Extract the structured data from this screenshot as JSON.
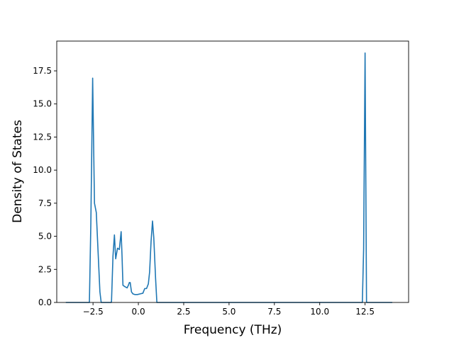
{
  "chart_data": {
    "type": "line",
    "title": "",
    "xlabel": "Frequency (THz)",
    "ylabel": "Density of States",
    "xlim": [
      -4.5,
      14.9
    ],
    "ylim": [
      0,
      19.75
    ],
    "grid": false,
    "legend": "none",
    "line_color": "#1f77b4",
    "x_ticks": [
      {
        "value": -2.5,
        "label": "−2.5"
      },
      {
        "value": 0.0,
        "label": "0.0"
      },
      {
        "value": 2.5,
        "label": "2.5"
      },
      {
        "value": 5.0,
        "label": "5.0"
      },
      {
        "value": 7.5,
        "label": "7.5"
      },
      {
        "value": 10.0,
        "label": "10.0"
      },
      {
        "value": 12.5,
        "label": "12.5"
      }
    ],
    "y_ticks": [
      {
        "value": 0.0,
        "label": "0.0"
      },
      {
        "value": 2.5,
        "label": "2.5"
      },
      {
        "value": 5.0,
        "label": "5.0"
      },
      {
        "value": 7.5,
        "label": "7.5"
      },
      {
        "value": 10.0,
        "label": "10.0"
      },
      {
        "value": 12.5,
        "label": "12.5"
      },
      {
        "value": 15.0,
        "label": "15.0"
      },
      {
        "value": 17.5,
        "label": "17.5"
      }
    ],
    "series": [
      {
        "x": [
          -4.0,
          -2.7,
          -2.62,
          -2.52,
          -2.42,
          -2.32,
          -2.22,
          -2.12,
          -2.05,
          -1.5,
          -1.48,
          -1.4,
          -1.32,
          -1.25,
          -1.15,
          -1.05,
          -0.95,
          -0.9,
          -0.85,
          -0.75,
          -0.62,
          -0.55,
          -0.5,
          -0.45,
          -0.38,
          -0.3,
          -0.2,
          -0.05,
          0.1,
          0.25,
          0.35,
          0.45,
          0.55,
          0.62,
          0.7,
          0.78,
          0.85,
          0.95,
          1.02,
          1.1,
          12.35,
          12.42,
          12.5,
          12.58,
          12.65,
          14.0
        ],
        "y": [
          0.0,
          0.0,
          6.0,
          16.95,
          7.5,
          6.8,
          3.8,
          0.8,
          0.0,
          0.0,
          0.1,
          3.5,
          5.1,
          3.3,
          4.1,
          4.0,
          5.35,
          3.5,
          1.3,
          1.2,
          1.1,
          1.3,
          1.5,
          1.5,
          0.8,
          0.65,
          0.6,
          0.6,
          0.65,
          0.7,
          1.05,
          1.05,
          1.4,
          2.3,
          4.6,
          6.15,
          4.9,
          1.8,
          0.0,
          0.0,
          0.0,
          4.0,
          18.85,
          0.0,
          0.0,
          0.0
        ]
      }
    ]
  }
}
